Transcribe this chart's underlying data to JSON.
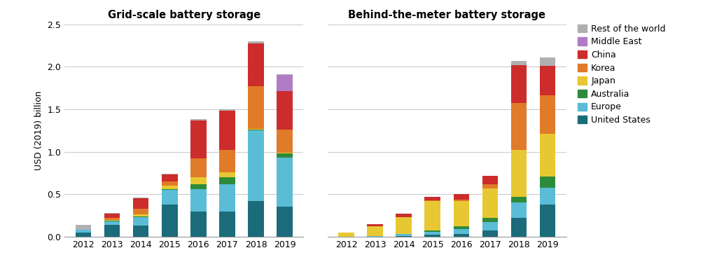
{
  "years": [
    2012,
    2013,
    2014,
    2015,
    2016,
    2017,
    2018,
    2019
  ],
  "categories": [
    "United States",
    "Europe",
    "Australia",
    "Japan",
    "Korea",
    "China",
    "Middle East",
    "Rest of the world"
  ],
  "colors": [
    "#1b6b7b",
    "#5bbcd6",
    "#2e8b3a",
    "#e8c832",
    "#e07b2a",
    "#cc2c2c",
    "#b07cc6",
    "#b0b0b0"
  ],
  "grid_scale": {
    "United States": [
      0.05,
      0.14,
      0.13,
      0.38,
      0.3,
      0.3,
      0.42,
      0.35
    ],
    "Europe": [
      0.03,
      0.04,
      0.1,
      0.17,
      0.26,
      0.32,
      0.83,
      0.58
    ],
    "Australia": [
      0.0,
      0.01,
      0.01,
      0.01,
      0.06,
      0.08,
      0.01,
      0.05
    ],
    "Japan": [
      0.0,
      0.01,
      0.02,
      0.04,
      0.08,
      0.06,
      0.01,
      0.01
    ],
    "Korea": [
      0.0,
      0.02,
      0.07,
      0.05,
      0.22,
      0.26,
      0.5,
      0.27
    ],
    "China": [
      0.0,
      0.05,
      0.12,
      0.08,
      0.45,
      0.46,
      0.5,
      0.45
    ],
    "Middle East": [
      0.0,
      0.0,
      0.0,
      0.0,
      0.0,
      0.0,
      0.0,
      0.19
    ],
    "Rest of the world": [
      0.06,
      0.01,
      0.01,
      0.01,
      0.01,
      0.02,
      0.03,
      0.01
    ]
  },
  "behind_meter": {
    "United States": [
      0.0,
      0.0,
      0.01,
      0.02,
      0.03,
      0.07,
      0.22,
      0.38
    ],
    "Europe": [
      0.0,
      0.01,
      0.02,
      0.04,
      0.06,
      0.1,
      0.18,
      0.2
    ],
    "Australia": [
      0.0,
      0.0,
      0.0,
      0.01,
      0.03,
      0.05,
      0.07,
      0.13
    ],
    "Japan": [
      0.05,
      0.11,
      0.2,
      0.35,
      0.3,
      0.35,
      0.55,
      0.5
    ],
    "Korea": [
      0.0,
      0.0,
      0.0,
      0.01,
      0.02,
      0.05,
      0.55,
      0.45
    ],
    "China": [
      0.0,
      0.03,
      0.04,
      0.04,
      0.06,
      0.1,
      0.45,
      0.35
    ],
    "Middle East": [
      0.0,
      0.0,
      0.0,
      0.0,
      0.0,
      0.0,
      0.0,
      0.0
    ],
    "Rest of the world": [
      0.0,
      0.0,
      0.0,
      0.0,
      0.0,
      0.0,
      0.05,
      0.1
    ]
  },
  "title_left": "Grid-scale battery storage",
  "title_right": "Behind-the-meter battery storage",
  "ylabel": "USD (2019) billion",
  "ylim": [
    0,
    2.5
  ],
  "yticks": [
    0.0,
    0.5,
    1.0,
    1.5,
    2.0,
    2.5
  ],
  "bar_width": 0.55,
  "background_color": "#ffffff",
  "grid_color": "#cccccc",
  "title_fontsize": 10.5,
  "label_fontsize": 9,
  "tick_fontsize": 9
}
